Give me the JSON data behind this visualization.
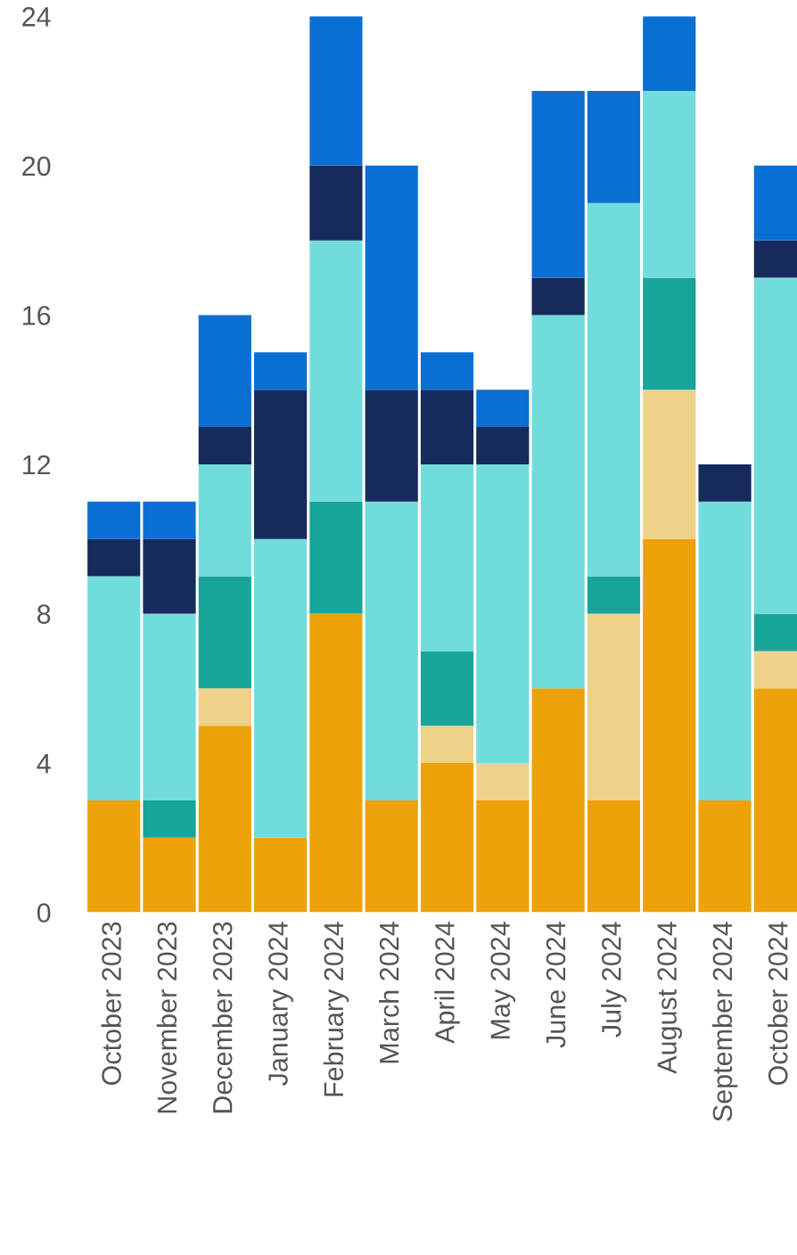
{
  "chart_data": {
    "type": "bar",
    "stacked": true,
    "categories": [
      "October 2023",
      "November 2023",
      "December 2023",
      "January 2024",
      "February 2024",
      "March 2024",
      "April 2024",
      "May 2024",
      "June 2024",
      "July 2024",
      "August 2024",
      "September 2024",
      "October 2024"
    ],
    "series": [
      {
        "color": "#eda20a",
        "values": [
          3,
          2,
          5,
          2,
          8,
          3,
          4,
          3,
          6,
          3,
          10,
          3,
          6
        ]
      },
      {
        "color": "#efd28a",
        "values": [
          0,
          0,
          1,
          0,
          0,
          0,
          1,
          1,
          0,
          5,
          4,
          0,
          1
        ]
      },
      {
        "color": "#17a59a",
        "values": [
          0,
          1,
          3,
          0,
          3,
          0,
          2,
          0,
          0,
          1,
          3,
          0,
          1
        ]
      },
      {
        "color": "#72dcdc",
        "values": [
          6,
          5,
          3,
          8,
          7,
          8,
          5,
          8,
          10,
          10,
          5,
          8,
          9
        ]
      },
      {
        "color": "#172a5c",
        "values": [
          1,
          2,
          1,
          4,
          2,
          3,
          2,
          1,
          1,
          0,
          0,
          1,
          1
        ]
      },
      {
        "color": "#0a6fd2",
        "values": [
          1,
          1,
          3,
          1,
          4,
          6,
          1,
          1,
          5,
          3,
          2,
          0,
          2
        ]
      }
    ],
    "ylim": [
      0,
      24
    ],
    "yticks": [
      0,
      4,
      8,
      12,
      16,
      20,
      24
    ],
    "grid": false,
    "legend": false
  }
}
